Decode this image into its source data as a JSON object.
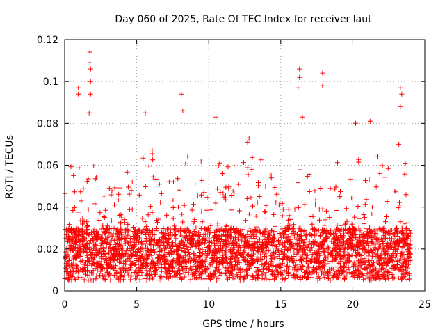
{
  "chart_data": {
    "type": "scatter",
    "title": "Day 060 of 2025, Rate Of TEC Index for receiver laut",
    "xlabel": "GPS time / hours",
    "ylabel": "ROTI / TECUs",
    "xlim": [
      0,
      25
    ],
    "ylim": [
      0,
      0.12
    ],
    "x_ticks": [
      0,
      5,
      10,
      15,
      20,
      25
    ],
    "x_tick_labels": [
      "0",
      "5",
      "10",
      "15",
      "20",
      "25"
    ],
    "y_ticks": [
      0,
      0.02,
      0.04,
      0.06,
      0.08,
      0.1,
      0.12
    ],
    "y_tick_labels": [
      "0",
      "0.02",
      "0.04",
      "0.06",
      "0.08",
      "0.1",
      "0.12"
    ],
    "grid": true,
    "marker": "+",
    "series": [
      {
        "name": "ROTI",
        "color": "#ff0000",
        "x_range": [
          0,
          24
        ],
        "baseline_band": [
          0.005,
          0.03
        ],
        "notable_points": [
          {
            "x": 1.75,
            "y": 0.114
          },
          {
            "x": 1.75,
            "y": 0.109
          },
          {
            "x": 1.8,
            "y": 0.106
          },
          {
            "x": 1.8,
            "y": 0.1
          },
          {
            "x": 0.95,
            "y": 0.097
          },
          {
            "x": 0.95,
            "y": 0.094
          },
          {
            "x": 1.8,
            "y": 0.094
          },
          {
            "x": 8.1,
            "y": 0.094
          },
          {
            "x": 1.7,
            "y": 0.085
          },
          {
            "x": 5.6,
            "y": 0.085
          },
          {
            "x": 8.2,
            "y": 0.086
          },
          {
            "x": 10.5,
            "y": 0.083
          },
          {
            "x": 16.3,
            "y": 0.106
          },
          {
            "x": 16.3,
            "y": 0.102
          },
          {
            "x": 16.2,
            "y": 0.097
          },
          {
            "x": 17.9,
            "y": 0.104
          },
          {
            "x": 17.9,
            "y": 0.098
          },
          {
            "x": 16.5,
            "y": 0.083
          },
          {
            "x": 20.2,
            "y": 0.08
          },
          {
            "x": 21.2,
            "y": 0.081
          },
          {
            "x": 23.3,
            "y": 0.097
          },
          {
            "x": 23.4,
            "y": 0.094
          },
          {
            "x": 23.3,
            "y": 0.088
          },
          {
            "x": 23.2,
            "y": 0.07
          },
          {
            "x": 12.8,
            "y": 0.073
          },
          {
            "x": 12.7,
            "y": 0.071
          }
        ]
      }
    ]
  }
}
